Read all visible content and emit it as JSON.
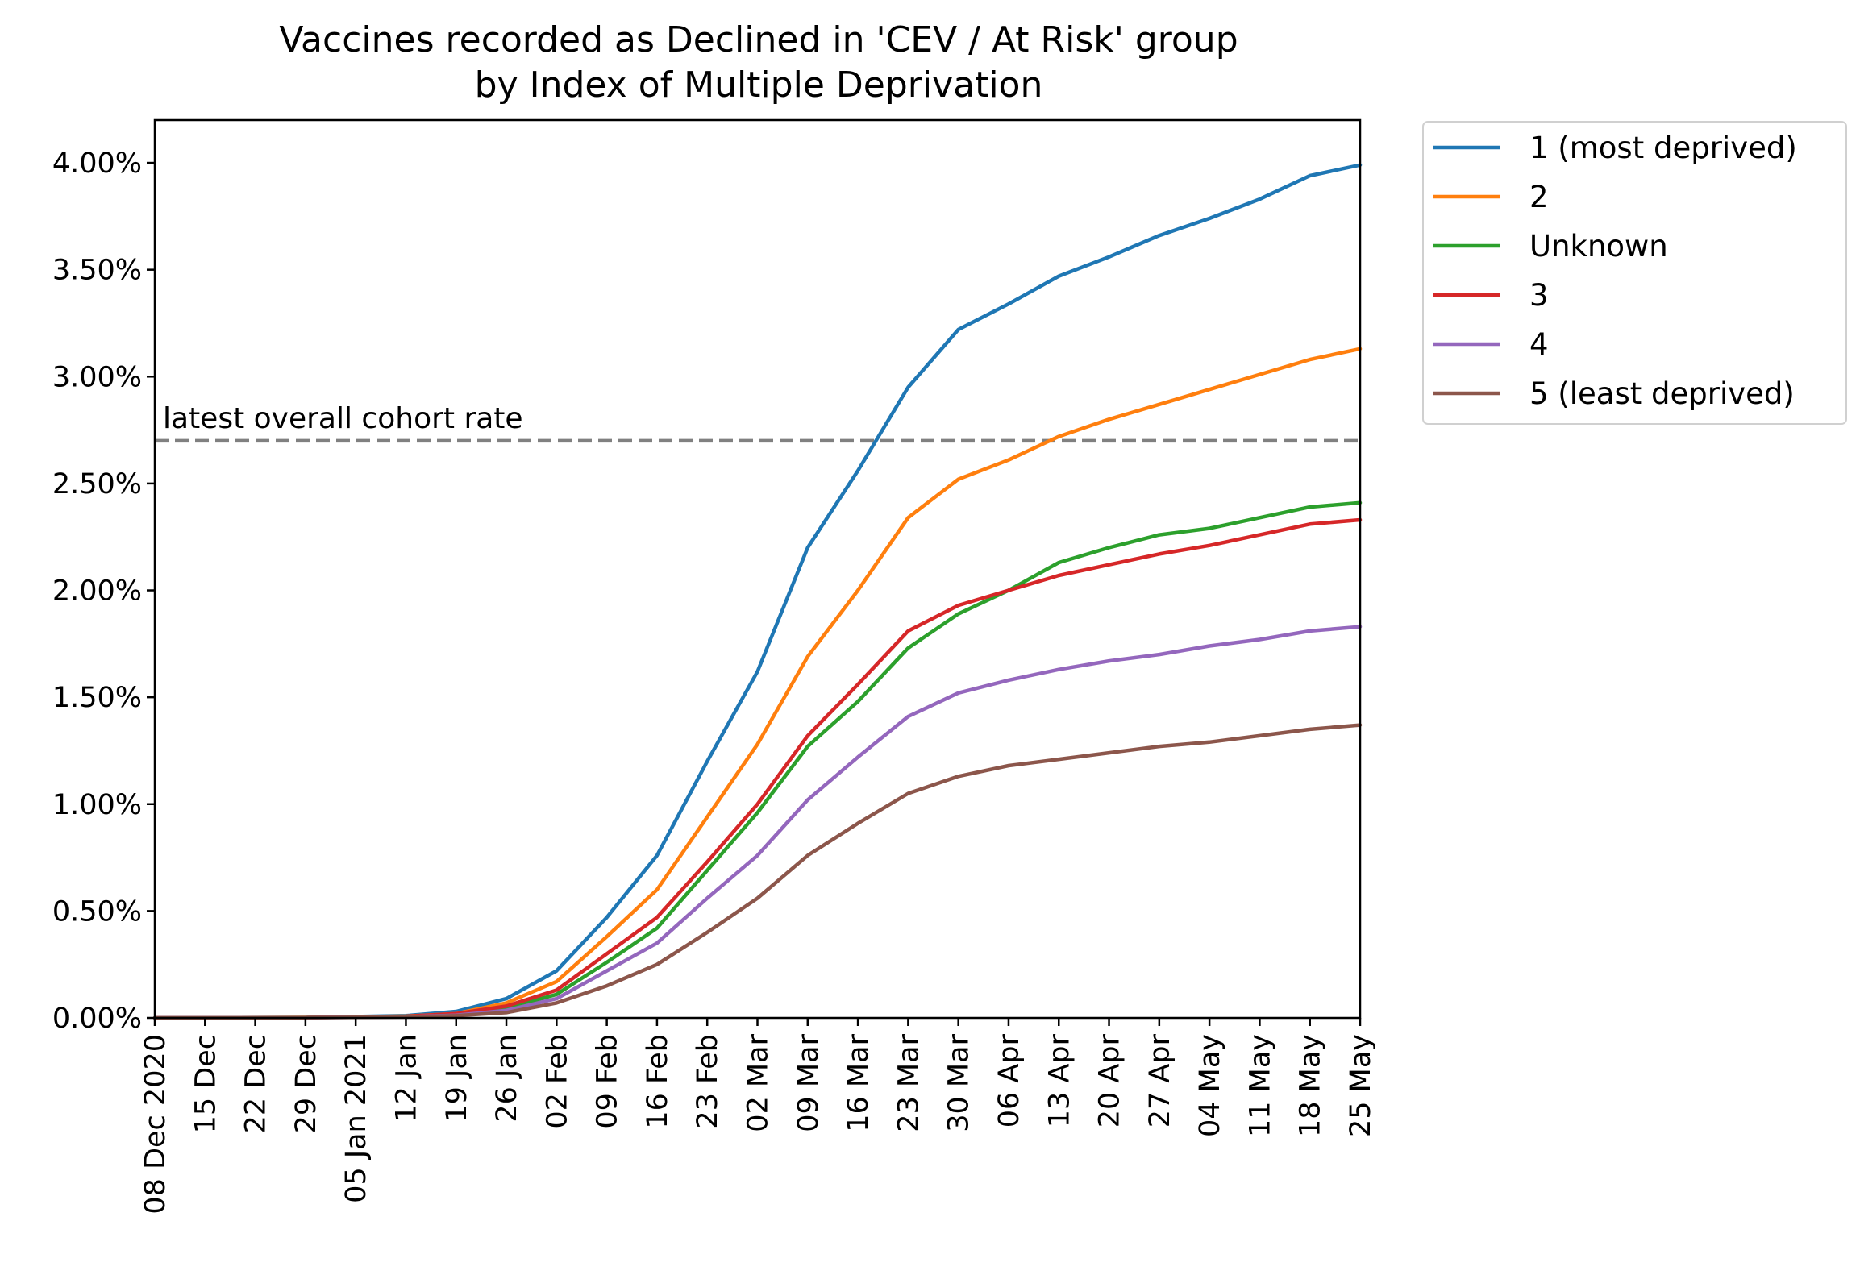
{
  "chart_data": {
    "type": "line",
    "title_line1": "Vaccines recorded as Declined in 'CEV / At Risk' group",
    "title_line2": "by Index of Multiple Deprivation",
    "xlabel": "",
    "ylabel": "",
    "x_range": [
      "2020-12-08",
      "2021-05-25"
    ],
    "ylim": [
      0,
      4.2
    ],
    "y_ticks": [
      0,
      0.5,
      1.0,
      1.5,
      2.0,
      2.5,
      3.0,
      3.5,
      4.0
    ],
    "y_tick_labels": [
      "0.00%",
      "0.50%",
      "1.00%",
      "1.50%",
      "2.00%",
      "2.50%",
      "3.00%",
      "3.50%",
      "4.00%"
    ],
    "x_ticks": [
      "2020-12-08",
      "2020-12-15",
      "2020-12-22",
      "2020-12-29",
      "2021-01-05",
      "2021-01-12",
      "2021-01-19",
      "2021-01-26",
      "2021-02-02",
      "2021-02-09",
      "2021-02-16",
      "2021-02-23",
      "2021-03-02",
      "2021-03-09",
      "2021-03-16",
      "2021-03-23",
      "2021-03-30",
      "2021-04-06",
      "2021-04-13",
      "2021-04-20",
      "2021-04-27",
      "2021-05-04",
      "2021-05-11",
      "2021-05-18",
      "2021-05-25"
    ],
    "x_tick_labels": [
      "08 Dec 2020",
      "15 Dec",
      "22 Dec",
      "29 Dec",
      "05 Jan 2021",
      "12 Jan",
      "19 Jan",
      "26 Jan",
      "02 Feb",
      "09 Feb",
      "16 Feb",
      "23 Feb",
      "02 Mar",
      "09 Mar",
      "16 Mar",
      "23 Mar",
      "30 Mar",
      "06 Apr",
      "13 Apr",
      "20 Apr",
      "27 Apr",
      "04 May",
      "11 May",
      "18 May",
      "25 May"
    ],
    "grid": false,
    "legend_position": "outside-right",
    "reference_line": {
      "label": "latest overall cohort rate",
      "y": 2.7,
      "color": "#808080"
    },
    "series": [
      {
        "name": "1 (most deprived)",
        "color": "#1f77b4",
        "x": [
          "2020-12-08",
          "2020-12-29",
          "2021-01-12",
          "2021-01-19",
          "2021-01-26",
          "2021-02-02",
          "2021-02-09",
          "2021-02-16",
          "2021-02-23",
          "2021-03-02",
          "2021-03-09",
          "2021-03-16",
          "2021-03-23",
          "2021-03-30",
          "2021-04-06",
          "2021-04-13",
          "2021-04-20",
          "2021-04-27",
          "2021-05-04",
          "2021-05-11",
          "2021-05-18",
          "2021-05-25"
        ],
        "y": [
          0,
          0.002,
          0.01,
          0.03,
          0.09,
          0.22,
          0.47,
          0.76,
          1.2,
          1.62,
          2.2,
          2.56,
          2.95,
          3.22,
          3.34,
          3.47,
          3.56,
          3.66,
          3.74,
          3.83,
          3.94,
          3.99
        ]
      },
      {
        "name": "2",
        "color": "#ff7f0e",
        "x": [
          "2020-12-08",
          "2020-12-29",
          "2021-01-12",
          "2021-01-19",
          "2021-01-26",
          "2021-02-02",
          "2021-02-09",
          "2021-02-16",
          "2021-02-23",
          "2021-03-02",
          "2021-03-09",
          "2021-03-16",
          "2021-03-23",
          "2021-03-30",
          "2021-04-06",
          "2021-04-13",
          "2021-04-20",
          "2021-04-27",
          "2021-05-04",
          "2021-05-11",
          "2021-05-18",
          "2021-05-25"
        ],
        "y": [
          0,
          0.002,
          0.008,
          0.02,
          0.07,
          0.17,
          0.38,
          0.6,
          0.94,
          1.28,
          1.69,
          2.0,
          2.34,
          2.52,
          2.61,
          2.72,
          2.8,
          2.87,
          2.94,
          3.01,
          3.08,
          3.13
        ]
      },
      {
        "name": "Unknown",
        "color": "#2ca02c",
        "x": [
          "2020-12-08",
          "2020-12-29",
          "2021-01-12",
          "2021-01-19",
          "2021-01-26",
          "2021-02-02",
          "2021-02-09",
          "2021-02-16",
          "2021-02-23",
          "2021-03-02",
          "2021-03-09",
          "2021-03-16",
          "2021-03-23",
          "2021-03-30",
          "2021-04-06",
          "2021-04-13",
          "2021-04-20",
          "2021-04-27",
          "2021-05-04",
          "2021-05-11",
          "2021-05-18",
          "2021-05-25"
        ],
        "y": [
          0,
          0.001,
          0.006,
          0.015,
          0.045,
          0.11,
          0.26,
          0.42,
          0.69,
          0.96,
          1.27,
          1.48,
          1.73,
          1.89,
          2.0,
          2.13,
          2.2,
          2.26,
          2.29,
          2.34,
          2.39,
          2.41
        ]
      },
      {
        "name": "3",
        "color": "#d62728",
        "x": [
          "2020-12-08",
          "2020-12-29",
          "2021-01-12",
          "2021-01-19",
          "2021-01-26",
          "2021-02-02",
          "2021-02-09",
          "2021-02-16",
          "2021-02-23",
          "2021-03-02",
          "2021-03-09",
          "2021-03-16",
          "2021-03-23",
          "2021-03-30",
          "2021-04-06",
          "2021-04-13",
          "2021-04-20",
          "2021-04-27",
          "2021-05-04",
          "2021-05-11",
          "2021-05-18",
          "2021-05-25"
        ],
        "y": [
          0,
          0.001,
          0.007,
          0.02,
          0.055,
          0.13,
          0.3,
          0.47,
          0.73,
          1.0,
          1.32,
          1.56,
          1.81,
          1.93,
          2.0,
          2.07,
          2.12,
          2.17,
          2.21,
          2.26,
          2.31,
          2.33
        ]
      },
      {
        "name": "4",
        "color": "#9467bd",
        "x": [
          "2020-12-08",
          "2020-12-29",
          "2021-01-12",
          "2021-01-19",
          "2021-01-26",
          "2021-02-02",
          "2021-02-09",
          "2021-02-16",
          "2021-02-23",
          "2021-03-02",
          "2021-03-09",
          "2021-03-16",
          "2021-03-23",
          "2021-03-30",
          "2021-04-06",
          "2021-04-13",
          "2021-04-20",
          "2021-04-27",
          "2021-05-04",
          "2021-05-11",
          "2021-05-18",
          "2021-05-25"
        ],
        "y": [
          0,
          0.001,
          0.005,
          0.012,
          0.035,
          0.09,
          0.22,
          0.35,
          0.56,
          0.76,
          1.02,
          1.22,
          1.41,
          1.52,
          1.58,
          1.63,
          1.67,
          1.7,
          1.74,
          1.77,
          1.81,
          1.83
        ]
      },
      {
        "name": "5 (least deprived)",
        "color": "#8c564b",
        "x": [
          "2020-12-08",
          "2020-12-29",
          "2021-01-12",
          "2021-01-19",
          "2021-01-26",
          "2021-02-02",
          "2021-02-09",
          "2021-02-16",
          "2021-02-23",
          "2021-03-02",
          "2021-03-09",
          "2021-03-16",
          "2021-03-23",
          "2021-03-30",
          "2021-04-06",
          "2021-04-13",
          "2021-04-20",
          "2021-04-27",
          "2021-05-04",
          "2021-05-11",
          "2021-05-18",
          "2021-05-25"
        ],
        "y": [
          0,
          0.001,
          0.004,
          0.01,
          0.025,
          0.07,
          0.15,
          0.25,
          0.4,
          0.56,
          0.76,
          0.91,
          1.05,
          1.13,
          1.18,
          1.21,
          1.24,
          1.27,
          1.29,
          1.32,
          1.35,
          1.37
        ]
      }
    ]
  }
}
